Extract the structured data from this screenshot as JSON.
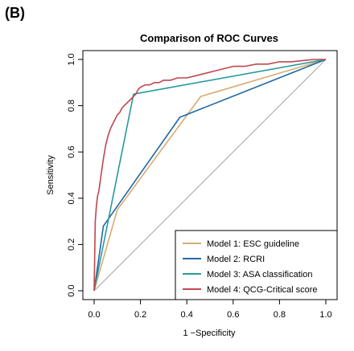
{
  "panel_label": "(B)",
  "chart_data": {
    "type": "line",
    "title": "Comparison of ROC Curves",
    "xlabel": "1 −Specificity",
    "ylabel": "Sensitivity",
    "xlim": [
      0,
      1
    ],
    "ylim": [
      0,
      1
    ],
    "xticks": [
      "0.0",
      "0.2",
      "0.4",
      "0.6",
      "0.8",
      "1.0"
    ],
    "yticks": [
      "0.0",
      "0.2",
      "0.4",
      "0.6",
      "0.8",
      "1.0"
    ],
    "grid": false,
    "legend": "bottom-right",
    "reference_line": {
      "x": [
        0,
        1
      ],
      "y": [
        0,
        1
      ],
      "color": "#a6a6a6"
    },
    "series": [
      {
        "name": "Model 1: ESC guideline",
        "color": "#d9ab72",
        "x": [
          0,
          0.1,
          0.46,
          1
        ],
        "y": [
          0,
          0.35,
          0.84,
          1
        ]
      },
      {
        "name": "Model 2: RCRI",
        "color": "#1f6aa8",
        "x": [
          0,
          0.04,
          0.37,
          1
        ],
        "y": [
          0,
          0.28,
          0.75,
          1
        ]
      },
      {
        "name": "Model 3: ASA classification",
        "color": "#2a9a9c",
        "x": [
          0,
          0.17,
          1
        ],
        "y": [
          0,
          0.85,
          1
        ]
      },
      {
        "name": "Model 4: QCG-Critical score",
        "color": "#c0474d",
        "x": [
          0,
          0.005,
          0.01,
          0.015,
          0.02,
          0.03,
          0.04,
          0.05,
          0.06,
          0.07,
          0.08,
          0.09,
          0.1,
          0.11,
          0.12,
          0.13,
          0.14,
          0.15,
          0.16,
          0.17,
          0.18,
          0.19,
          0.2,
          0.22,
          0.24,
          0.26,
          0.28,
          0.3,
          0.33,
          0.36,
          0.4,
          0.44,
          0.48,
          0.52,
          0.56,
          0.6,
          0.65,
          0.7,
          0.75,
          0.8,
          0.85,
          0.9,
          0.95,
          1
        ],
        "y": [
          0,
          0.3,
          0.37,
          0.41,
          0.43,
          0.5,
          0.57,
          0.63,
          0.67,
          0.7,
          0.72,
          0.74,
          0.76,
          0.77,
          0.79,
          0.8,
          0.81,
          0.82,
          0.83,
          0.84,
          0.85,
          0.87,
          0.88,
          0.89,
          0.89,
          0.9,
          0.9,
          0.91,
          0.91,
          0.92,
          0.92,
          0.93,
          0.94,
          0.95,
          0.96,
          0.97,
          0.97,
          0.98,
          0.98,
          0.99,
          0.99,
          0.995,
          1,
          1
        ]
      }
    ]
  }
}
